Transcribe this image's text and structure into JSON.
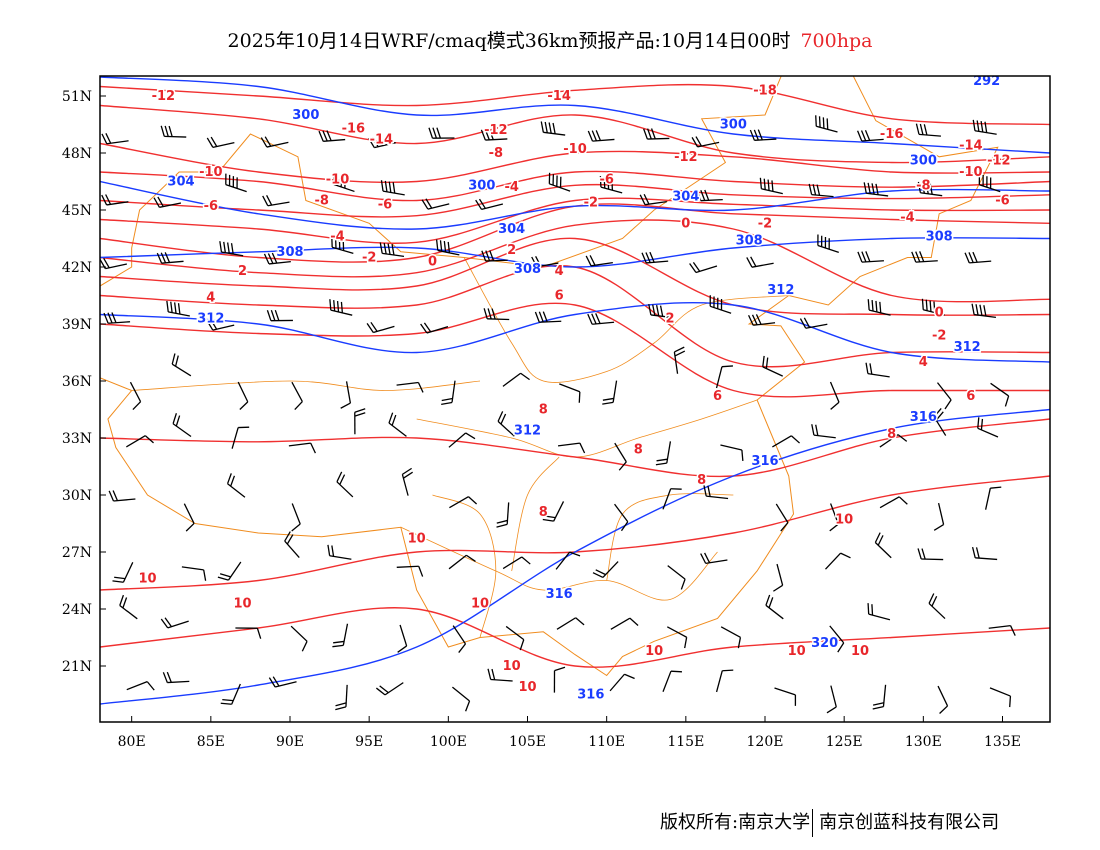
{
  "title": {
    "text": "2025年10月14日WRF/cmaq模式36km预报产品:10月14日00时",
    "level": "700hpa"
  },
  "footer": {
    "left": "版权所有:南京大学",
    "right": "南京创蓝科技有限公司"
  },
  "colors": {
    "temperature": "#f03030",
    "height": "#1a3cff",
    "border": "#f08c1e",
    "wind": "#000000"
  },
  "map": {
    "lon_range": [
      78,
      138
    ],
    "lat_range": [
      18,
      52
    ],
    "lon_ticks": [
      "80E",
      "85E",
      "90E",
      "95E",
      "100E",
      "105E",
      "110E",
      "115E",
      "120E",
      "125E",
      "130E",
      "135E"
    ],
    "lon_tick_values": [
      80,
      85,
      90,
      95,
      100,
      105,
      110,
      115,
      120,
      125,
      130,
      135
    ],
    "lat_ticks": [
      "21N",
      "24N",
      "27N",
      "30N",
      "33N",
      "36N",
      "39N",
      "42N",
      "45N",
      "48N",
      "51N"
    ],
    "lat_tick_values": [
      21,
      24,
      27,
      30,
      33,
      36,
      39,
      42,
      45,
      48,
      51
    ],
    "contour_lons": [
      78,
      88,
      98,
      108,
      118,
      128,
      138
    ],
    "temperature_contours": [
      {
        "value": -14,
        "lats": [
          51.5,
          51,
          50.5,
          51.3,
          51.5,
          49.8,
          49.5
        ]
      },
      {
        "value": -12,
        "lats": [
          50.5,
          49.8,
          48.5,
          50,
          48,
          47.5,
          47.8
        ]
      },
      {
        "value": -10,
        "lats": [
          48.5,
          47,
          46.5,
          48,
          47.8,
          47,
          47
        ]
      },
      {
        "value": -8,
        "lats": [
          47,
          46.5,
          45.5,
          47,
          46.5,
          46.2,
          46.5
        ]
      },
      {
        "value": -6,
        "lats": [
          45.5,
          45,
          44.7,
          46.3,
          45.8,
          45.6,
          45.8
        ]
      },
      {
        "value": -4,
        "lats": [
          44.5,
          44,
          43.3,
          45.5,
          45.3,
          45,
          45
        ]
      },
      {
        "value": -2,
        "lats": [
          43.5,
          42.5,
          42.5,
          45.2,
          44.8,
          44.5,
          44.3
        ]
      },
      {
        "value": 0,
        "lats": [
          42.5,
          41.7,
          41.7,
          44.2,
          44,
          40.5,
          40.3
        ]
      },
      {
        "value": 2,
        "lats": [
          41.5,
          41,
          41,
          43.5,
          40,
          39.5,
          39.5
        ]
      },
      {
        "value": 4,
        "lats": [
          40.5,
          40,
          40,
          42,
          37,
          37.5,
          37.5
        ]
      },
      {
        "value": 6,
        "lats": [
          39,
          38.5,
          38.5,
          40,
          35.5,
          35.5,
          35.5
        ]
      },
      {
        "value": 8,
        "lats": [
          33,
          32.8,
          33,
          32,
          31,
          33,
          34
        ]
      },
      {
        "value": 10,
        "lats": [
          25,
          25.5,
          27,
          27,
          28,
          30,
          31
        ]
      },
      {
        "value": 10,
        "lats": [
          22,
          23,
          24,
          21,
          22,
          22.5,
          23
        ]
      }
    ],
    "height_contours": [
      {
        "value": 300,
        "lats": [
          52,
          51.5,
          50,
          50.5,
          49,
          48.5,
          48
        ]
      },
      {
        "value": 304,
        "lats": [
          46.5,
          44.8,
          44,
          45.2,
          45,
          46,
          46
        ]
      },
      {
        "value": 308,
        "lats": [
          42.5,
          42.8,
          43,
          42,
          43,
          43.5,
          43.5
        ]
      },
      {
        "value": 312,
        "lats": [
          39.5,
          39,
          37.5,
          39.5,
          40,
          37.5,
          37
        ]
      },
      {
        "value": 316,
        "lats": [
          19,
          20,
          22,
          27,
          31,
          33.5,
          34.5
        ]
      }
    ],
    "temperature_labels": [
      {
        "t": "-12",
        "lon": 82,
        "lat": 51
      },
      {
        "t": "-16",
        "lon": 94,
        "lat": 49.3
      },
      {
        "t": "-14",
        "lon": 94,
        "lat": 48.7
      },
      {
        "t": "-12",
        "lon": 103,
        "lat": 49.2
      },
      {
        "t": "-8",
        "lon": 103,
        "lat": 48
      },
      {
        "t": "-14",
        "lon": 107,
        "lat": 51
      },
      {
        "t": "-10",
        "lon": 108,
        "lat": 48.2
      },
      {
        "t": "-10",
        "lon": 93,
        "lat": 46.6
      },
      {
        "t": "-10",
        "lon": 85,
        "lat": 47
      },
      {
        "t": "-8",
        "lon": 92,
        "lat": 45.5
      },
      {
        "t": "-6",
        "lon": 85,
        "lat": 45.2
      },
      {
        "t": "-6",
        "lon": 96,
        "lat": 45.3
      },
      {
        "t": "-4",
        "lon": 93,
        "lat": 43.6
      },
      {
        "t": "-2",
        "lon": 95,
        "lat": 42.5
      },
      {
        "t": "0",
        "lon": 99,
        "lat": 42.3
      },
      {
        "t": "2",
        "lon": 87,
        "lat": 41.8
      },
      {
        "t": "4",
        "lon": 85,
        "lat": 40.4
      },
      {
        "t": "4",
        "lon": 107,
        "lat": 41.8
      },
      {
        "t": "2",
        "lon": 104,
        "lat": 42.9
      },
      {
        "t": "-2",
        "lon": 109,
        "lat": 45.4
      },
      {
        "t": "-4",
        "lon": 104,
        "lat": 46.2
      },
      {
        "t": "-6",
        "lon": 110,
        "lat": 46.6
      },
      {
        "t": "0",
        "lon": 115,
        "lat": 44.3
      },
      {
        "t": "-2",
        "lon": 120,
        "lat": 44.3
      },
      {
        "t": "-12",
        "lon": 115,
        "lat": 47.8
      },
      {
        "t": "-16",
        "lon": 128,
        "lat": 49
      },
      {
        "t": "-18",
        "lon": 120,
        "lat": 51.3
      },
      {
        "t": "-14",
        "lon": 133,
        "lat": 48.4
      },
      {
        "t": "-12",
        "lon": 133,
        "lat": 47.6
      },
      {
        "t": "-10",
        "lon": 133,
        "lat": 47
      },
      {
        "t": "-8",
        "lon": 130,
        "lat": 46.3
      },
      {
        "t": "-6",
        "lon": 135,
        "lat": 45.5
      },
      {
        "t": "-4",
        "lon": 129,
        "lat": 44.6
      },
      {
        "t": "0",
        "lon": 131,
        "lat": 39.6
      },
      {
        "t": "-2",
        "lon": 131,
        "lat": 38.4
      },
      {
        "t": "4",
        "lon": 130,
        "lat": 37
      },
      {
        "t": "6",
        "lon": 133,
        "lat": 35.2
      },
      {
        "t": "8",
        "lon": 128,
        "lat": 33.2
      },
      {
        "t": "6",
        "lon": 117,
        "lat": 35.2
      },
      {
        "t": "8",
        "lon": 112,
        "lat": 32.4
      },
      {
        "t": "8",
        "lon": 106,
        "lat": 34.5
      },
      {
        "t": "8",
        "lon": 116,
        "lat": 30.8
      },
      {
        "t": "8",
        "lon": 106,
        "lat": 29.1
      },
      {
        "t": "6",
        "lon": 107,
        "lat": 40.5
      },
      {
        "t": "2",
        "lon": 114,
        "lat": 39.3
      },
      {
        "t": "10",
        "lon": 81,
        "lat": 25.6
      },
      {
        "t": "10",
        "lon": 87,
        "lat": 24.3
      },
      {
        "t": "10",
        "lon": 98,
        "lat": 27.7
      },
      {
        "t": "10",
        "lon": 102,
        "lat": 24.3
      },
      {
        "t": "10",
        "lon": 113,
        "lat": 21.8
      },
      {
        "t": "10",
        "lon": 104,
        "lat": 21
      },
      {
        "t": "10",
        "lon": 105,
        "lat": 19.9
      },
      {
        "t": "10",
        "lon": 125,
        "lat": 28.7
      },
      {
        "t": "10",
        "lon": 122,
        "lat": 21.8
      },
      {
        "t": "10",
        "lon": 126,
        "lat": 21.8
      }
    ],
    "height_labels": [
      {
        "t": "292",
        "lon": 134,
        "lat": 51.8
      },
      {
        "t": "300",
        "lon": 91,
        "lat": 50
      },
      {
        "t": "300",
        "lon": 118,
        "lat": 49.5
      },
      {
        "t": "304",
        "lon": 84,
        "lat": 46.5
      },
      {
        "t": "300",
        "lon": 103,
        "lat": 46.3
      },
      {
        "t": "304",
        "lon": 104,
        "lat": 44
      },
      {
        "t": "304",
        "lon": 115,
        "lat": 45.7
      },
      {
        "t": "300",
        "lon": 130,
        "lat": 47.6
      },
      {
        "t": "308",
        "lon": 90,
        "lat": 42.8
      },
      {
        "t": "308",
        "lon": 105,
        "lat": 41.9
      },
      {
        "t": "308",
        "lon": 119,
        "lat": 43.4
      },
      {
        "t": "308",
        "lon": 131,
        "lat": 43.6
      },
      {
        "t": "312",
        "lon": 85,
        "lat": 39.3
      },
      {
        "t": "312",
        "lon": 121,
        "lat": 40.8
      },
      {
        "t": "312",
        "lon": 131,
        "lat": 37.8
      },
      {
        "t": "312",
        "lon": 105,
        "lat": 33.4
      },
      {
        "t": "316",
        "lon": 120,
        "lat": 31.8
      },
      {
        "t": "316",
        "lon": 130,
        "lat": 34.1
      },
      {
        "t": "316",
        "lon": 107,
        "lat": 24.8
      },
      {
        "t": "316",
        "lon": 109,
        "lat": 19.5
      },
      {
        "t": "320",
        "lon": 122,
        "lat": 22.2
      }
    ]
  }
}
